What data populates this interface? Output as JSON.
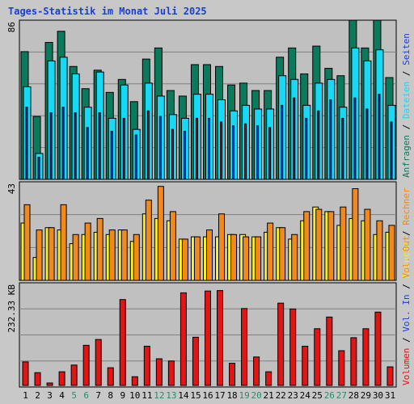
{
  "title": "Tages-Statistik im Monat Juli 2025",
  "colors": {
    "background": "#c8c8c8",
    "panel": "#c0c0c0",
    "grid": "#808080",
    "anfragen": "#0b7a5c",
    "dateien": "#18d8f4",
    "seiten": "#1a3fcf",
    "besuche": "#f8f020",
    "rechner": "#f08a1c",
    "volumen": "#e21414",
    "weekend_tick": "#2a8c6a",
    "weekday_tick": "#000000"
  },
  "chart_data": [
    {
      "type": "bar",
      "panel": "top",
      "ymax_label": "86",
      "ylim": [
        0,
        86
      ],
      "categories": [
        "1",
        "2",
        "3",
        "4",
        "5",
        "6",
        "7",
        "8",
        "9",
        "10",
        "11",
        "12",
        "13",
        "14",
        "15",
        "16",
        "17",
        "18",
        "19",
        "20",
        "21",
        "22",
        "23",
        "24",
        "25",
        "26",
        "27",
        "28",
        "29",
        "30",
        "31"
      ],
      "weekend_days": [
        "5",
        "6",
        "12",
        "13",
        "19",
        "20",
        "26",
        "27"
      ],
      "legend": [
        {
          "label": "Anfragen",
          "color": "#0b7a5c"
        },
        {
          "label": "Dateien",
          "color": "#18d8f4"
        },
        {
          "label": "Seiten",
          "color": "#1a3fcf"
        }
      ],
      "separators": [
        "/",
        "/"
      ],
      "series": [
        {
          "name": "Anfragen",
          "values": [
            69,
            34,
            74,
            80,
            61,
            49,
            59,
            47,
            54,
            42,
            65,
            71,
            48,
            45,
            62,
            62,
            61,
            51,
            52,
            48,
            48,
            66,
            71,
            57,
            72,
            60,
            56,
            86,
            71,
            86,
            55
          ]
        },
        {
          "name": "Dateien",
          "values": [
            50,
            14,
            64,
            66,
            57,
            39,
            58,
            33,
            51,
            27,
            52,
            45,
            35,
            33,
            46,
            46,
            43,
            37,
            40,
            38,
            38,
            56,
            54,
            40,
            52,
            54,
            39,
            71,
            64,
            70,
            40
          ]
        },
        {
          "name": "Seiten",
          "values": [
            39,
            12,
            36,
            39,
            36,
            28,
            36,
            26,
            33,
            24,
            37,
            34,
            27,
            26,
            33,
            33,
            31,
            29,
            30,
            29,
            28,
            40,
            44,
            33,
            37,
            43,
            33,
            44,
            38,
            46,
            31
          ]
        }
      ]
    },
    {
      "type": "bar",
      "panel": "middle",
      "ymax_label": "43",
      "ylim": [
        0,
        43
      ],
      "legend": [
        {
          "label": "Besuche",
          "color": "#f8f020"
        },
        {
          "label": "Rechner",
          "color": "#f08a1c"
        }
      ],
      "separators": [
        "/"
      ],
      "series": [
        {
          "name": "Besuche",
          "values": [
            25,
            10,
            23,
            22,
            16,
            20,
            21,
            20,
            22,
            17,
            29,
            27,
            26,
            18,
            19,
            19,
            19,
            20,
            20,
            19,
            21,
            23,
            18,
            26,
            32,
            30,
            24,
            27,
            26,
            20,
            21
          ]
        },
        {
          "name": "Rechner",
          "values": [
            33,
            22,
            23,
            33,
            20,
            25,
            27,
            22,
            22,
            20,
            35,
            41,
            30,
            18,
            19,
            22,
            29,
            20,
            19,
            19,
            25,
            23,
            20,
            30,
            31,
            30,
            32,
            40,
            31,
            26,
            24
          ]
        }
      ]
    },
    {
      "type": "bar",
      "panel": "bottom",
      "ymax_label": "232.33 KB",
      "ylim": [
        0,
        232.33
      ],
      "legend": [
        {
          "label": "Volumen",
          "color": "#e21414"
        },
        {
          "label": "Vol. In",
          "color": "#1a3fcf"
        },
        {
          "label": "Vol. Out",
          "color": "#f08a1c"
        }
      ],
      "separators": [
        "/",
        "/"
      ],
      "series": [
        {
          "name": "Volumen",
          "values": [
            56,
            32,
            9,
            34,
            49,
            93,
            106,
            43,
            195,
            23,
            91,
            63,
            58,
            210,
            111,
            214,
            215,
            53,
            175,
            67,
            34,
            187,
            174,
            91,
            130,
            156,
            81,
            110,
            130,
            167,
            45
          ]
        }
      ]
    }
  ]
}
